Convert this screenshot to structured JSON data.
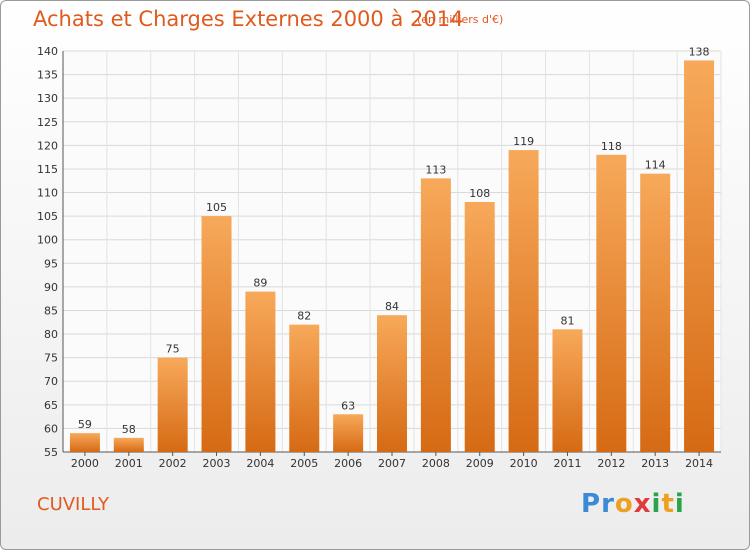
{
  "title": "Achats et Charges Externes 2000 à 2014",
  "unit": "(en milliers d'€)",
  "commune": "CUVILLY",
  "logo": {
    "letters": [
      "P",
      "r",
      "o",
      "x",
      "i",
      "t",
      "i"
    ]
  },
  "colors": {
    "bar_top": "#f7a95a",
    "bar_bottom": "#d66a14",
    "title": "#e05a1e"
  },
  "chart_data": {
    "type": "bar",
    "title": "Achats et Charges Externes 2000 à 2014",
    "categories": [
      "2000",
      "2001",
      "2002",
      "2003",
      "2004",
      "2005",
      "2006",
      "2007",
      "2008",
      "2009",
      "2010",
      "2011",
      "2012",
      "2013",
      "2014"
    ],
    "values": [
      59,
      58,
      75,
      105,
      89,
      82,
      63,
      84,
      113,
      108,
      119,
      81,
      118,
      114,
      138
    ],
    "ylim": [
      55,
      140
    ],
    "yticks": [
      55,
      60,
      65,
      70,
      75,
      80,
      85,
      90,
      95,
      100,
      105,
      110,
      115,
      120,
      125,
      130,
      135,
      140
    ],
    "grid": true,
    "xlabel": "",
    "ylabel": ""
  }
}
